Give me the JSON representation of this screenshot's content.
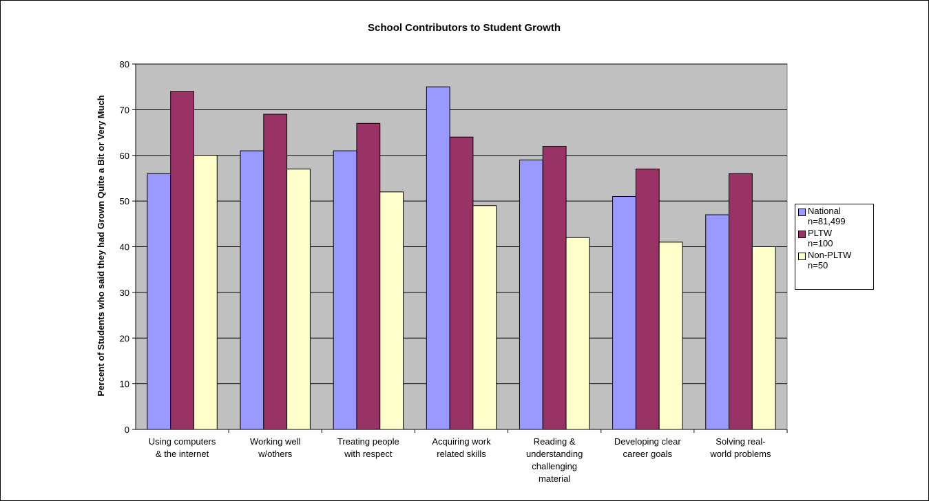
{
  "chart_data": {
    "type": "bar",
    "title": "School Contributors to Student Growth",
    "ylabel": "Percent of Students who said they had Grown Quite a Bit or Very Much",
    "xlabel": "",
    "ylim": [
      0,
      80
    ],
    "ytick_step": 10,
    "grid": true,
    "plot_background": "#c0c0c0",
    "legend_position": "right",
    "categories": [
      "Using computers & the internet",
      "Working well w/others",
      "Treating people with respect",
      "Acquiring work related skills",
      "Reading & understanding challenging material",
      "Developing clear career goals",
      "Solving real-world problems"
    ],
    "category_lines": [
      [
        "Using computers",
        "& the internet"
      ],
      [
        "Working well",
        "w/others"
      ],
      [
        "Treating people",
        "with respect"
      ],
      [
        "Acquiring work",
        "related skills"
      ],
      [
        "Reading &",
        "understanding",
        "challenging",
        "material"
      ],
      [
        "Developing clear",
        "career goals"
      ],
      [
        "Solving real-",
        "world problems"
      ]
    ],
    "series": [
      {
        "name": "National n=81,499",
        "legend_lines": "National\nn=81,499",
        "color": "#9999ff",
        "values": [
          56,
          61,
          61,
          75,
          59,
          51,
          47
        ]
      },
      {
        "name": "PLTW n=100",
        "legend_lines": "PLTW\nn=100",
        "color": "#993366",
        "values": [
          74,
          69,
          67,
          64,
          62,
          57,
          56
        ]
      },
      {
        "name": "Non-PLTW n=50",
        "legend_lines": "Non-PLTW\nn=50",
        "color": "#ffffcc",
        "values": [
          60,
          57,
          52,
          49,
          42,
          41,
          40
        ]
      }
    ]
  }
}
